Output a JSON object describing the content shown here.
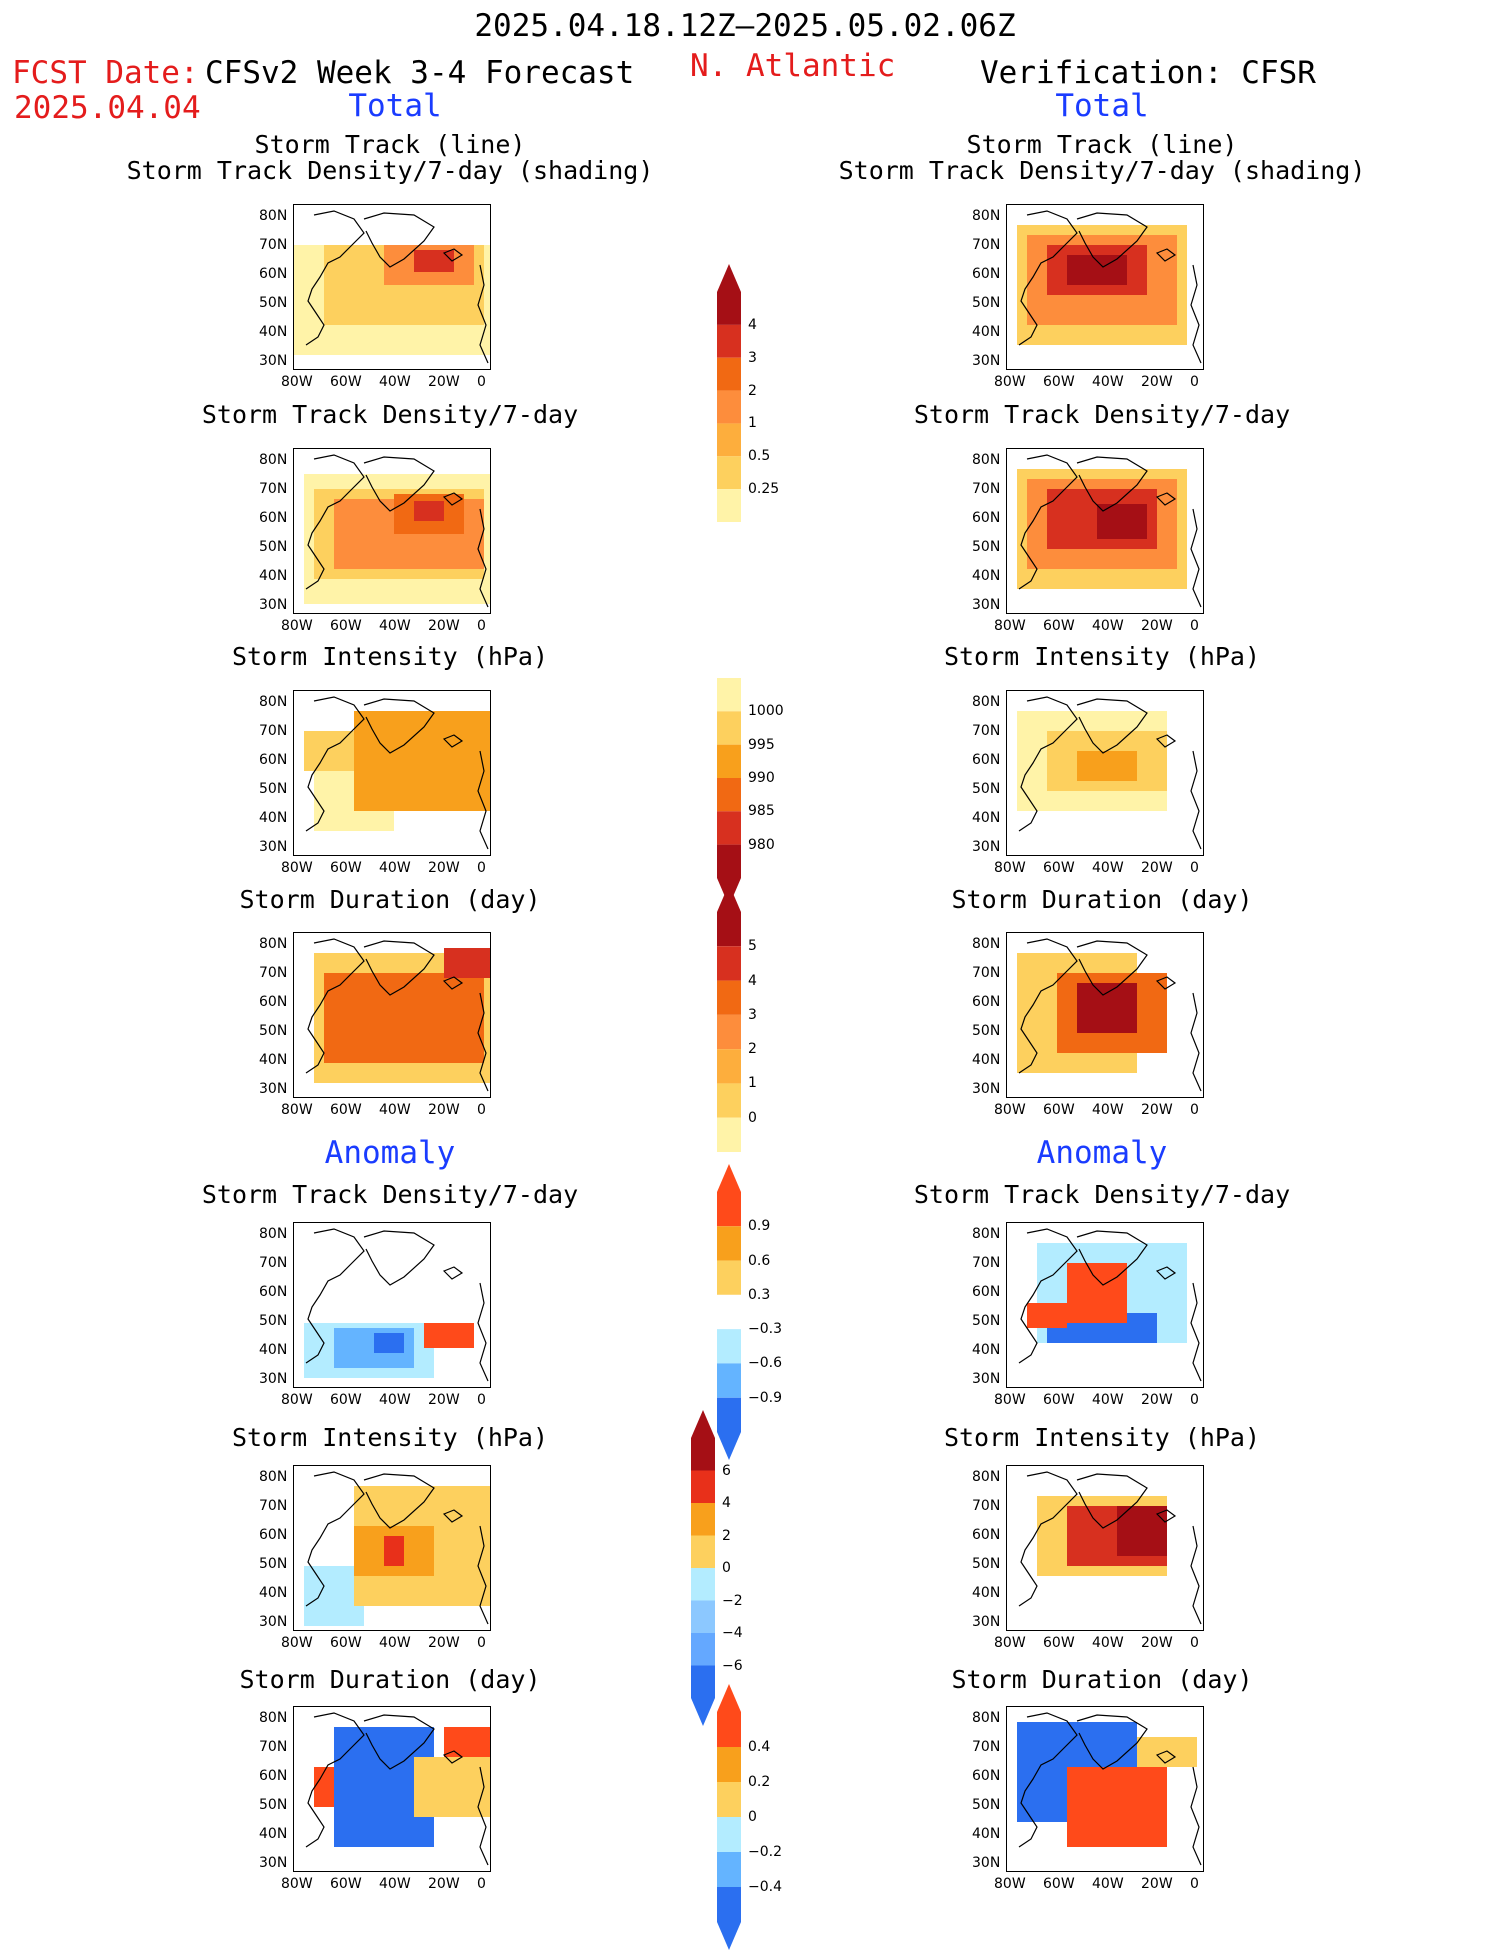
{
  "header": {
    "period": "2025.04.18.12Z–2025.05.02.06Z",
    "fcst_label": "FCST Date:",
    "fcst_date": "2025.04.04",
    "model": "CFSv2 Week 3-4 Forecast",
    "region": "N. Atlantic",
    "verification": "Verification: CFSR",
    "total_left": "Total",
    "total_right": "Total",
    "anomaly_left": "Anomaly",
    "anomaly_right": "Anomaly"
  },
  "panel_titles": {
    "track_line": "Storm Track (line)",
    "track_shading": "Storm Track Density/7-day (shading)",
    "density": "Storm Track Density/7-day",
    "intensity": "Storm Intensity (hPa)",
    "duration": "Storm Duration (day)"
  },
  "axes": {
    "lat_labels": [
      "80N",
      "70N",
      "60N",
      "50N",
      "40N",
      "30N"
    ],
    "lon_labels": [
      "80W",
      "60W",
      "40W",
      "20W",
      "0"
    ]
  },
  "colorbars": {
    "density_total": {
      "labels": [
        "4",
        "3",
        "2",
        "1",
        "0.5",
        "0.25"
      ],
      "colors": [
        "#a50f15",
        "#d7301f",
        "#f16913",
        "#fd8d3c",
        "#fdae3d",
        "#fdd05e",
        "#fff3a8"
      ]
    },
    "intensity_total": {
      "labels": [
        "1000",
        "995",
        "990",
        "985",
        "980"
      ],
      "colors": [
        "#fff3a8",
        "#fdd05e",
        "#f8a01c",
        "#f16913",
        "#d7301f",
        "#a50f15"
      ]
    },
    "duration_total": {
      "labels": [
        "5",
        "4",
        "3",
        "2",
        "1",
        "0"
      ],
      "colors": [
        "#a50f15",
        "#d7301f",
        "#f16913",
        "#fd8d3c",
        "#fdae3d",
        "#fdd05e",
        "#fff3a8"
      ]
    },
    "density_anom": {
      "labels": [
        "0.9",
        "0.6",
        "0.3",
        "−0.3",
        "−0.6",
        "−0.9"
      ],
      "colors": [
        "#ff4a1a",
        "#f8a01c",
        "#fdd05e",
        "#ffffff",
        "#b3ecff",
        "#64b4ff",
        "#2b6ff0"
      ]
    },
    "intensity_anom": {
      "labels": [
        "6",
        "4",
        "2",
        "0",
        "−2",
        "−4",
        "−6"
      ],
      "colors": [
        "#a50f15",
        "#e8301a",
        "#f8a01c",
        "#fdd05e",
        "#b3ecff",
        "#8cc8ff",
        "#64a8ff",
        "#2b6ff0"
      ]
    },
    "duration_anom": {
      "labels": [
        "0.4",
        "0.2",
        "0",
        "−0.2",
        "−0.4"
      ],
      "colors": [
        "#ff4a1a",
        "#f8a01c",
        "#fdd05e",
        "#b3ecff",
        "#64b4ff",
        "#2b6ff0"
      ]
    }
  }
}
